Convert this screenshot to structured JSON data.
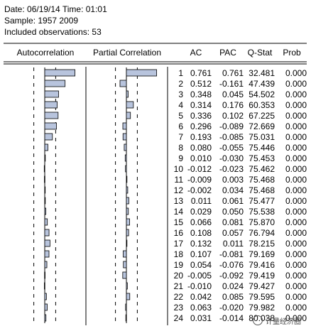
{
  "header": {
    "date_line": "Date: 06/19/14   Time: 01:01",
    "sample_line": "Sample: 1957 2009",
    "obs_line": "Included observations: 53"
  },
  "columns": {
    "autocorrelation": "Autocorrelation",
    "partial_correlation": "Partial Correlation",
    "ac": "AC",
    "pac": "PAC",
    "qstat": "Q-Stat",
    "prob": "Prob"
  },
  "bar_color": "#b8c4dd",
  "watermark": {
    "text": "计量经济圈"
  },
  "rows": [
    {
      "lag": "1",
      "ac": "0.761",
      "pac": "0.761",
      "q": "32.481",
      "prob": "0.000"
    },
    {
      "lag": "2",
      "ac": "0.512",
      "pac": "-0.161",
      "q": "47.439",
      "prob": "0.000"
    },
    {
      "lag": "3",
      "ac": "0.348",
      "pac": "0.045",
      "q": "54.502",
      "prob": "0.000"
    },
    {
      "lag": "4",
      "ac": "0.314",
      "pac": "0.176",
      "q": "60.353",
      "prob": "0.000"
    },
    {
      "lag": "5",
      "ac": "0.336",
      "pac": "0.102",
      "q": "67.225",
      "prob": "0.000"
    },
    {
      "lag": "6",
      "ac": "0.296",
      "pac": "-0.089",
      "q": "72.669",
      "prob": "0.000"
    },
    {
      "lag": "7",
      "ac": "0.193",
      "pac": "-0.085",
      "q": "75.031",
      "prob": "0.000"
    },
    {
      "lag": "8",
      "ac": "0.080",
      "pac": "-0.055",
      "q": "75.446",
      "prob": "0.000"
    },
    {
      "lag": "9",
      "ac": "0.010",
      "pac": "-0.030",
      "q": "75.453",
      "prob": "0.000"
    },
    {
      "lag": "10",
      "ac": "-0.012",
      "pac": "-0.023",
      "q": "75.462",
      "prob": "0.000"
    },
    {
      "lag": "11",
      "ac": "-0.009",
      "pac": "0.003",
      "q": "75.468",
      "prob": "0.000"
    },
    {
      "lag": "12",
      "ac": "-0.002",
      "pac": "0.034",
      "q": "75.468",
      "prob": "0.000"
    },
    {
      "lag": "13",
      "ac": "0.011",
      "pac": "0.061",
      "q": "75.477",
      "prob": "0.000"
    },
    {
      "lag": "14",
      "ac": "0.029",
      "pac": "0.050",
      "q": "75.538",
      "prob": "0.000"
    },
    {
      "lag": "15",
      "ac": "0.066",
      "pac": "0.081",
      "q": "75.870",
      "prob": "0.000"
    },
    {
      "lag": "16",
      "ac": "0.108",
      "pac": "0.057",
      "q": "76.794",
      "prob": "0.000"
    },
    {
      "lag": "17",
      "ac": "0.132",
      "pac": "0.011",
      "q": "78.215",
      "prob": "0.000"
    },
    {
      "lag": "18",
      "ac": "0.107",
      "pac": "-0.081",
      "q": "79.169",
      "prob": "0.000"
    },
    {
      "lag": "19",
      "ac": "0.054",
      "pac": "-0.076",
      "q": "79.416",
      "prob": "0.000"
    },
    {
      "lag": "20",
      "ac": "-0.005",
      "pac": "-0.092",
      "q": "79.419",
      "prob": "0.000"
    },
    {
      "lag": "21",
      "ac": "-0.010",
      "pac": "0.024",
      "q": "79.427",
      "prob": "0.000"
    },
    {
      "lag": "22",
      "ac": "0.042",
      "pac": "0.085",
      "q": "79.595",
      "prob": "0.000"
    },
    {
      "lag": "23",
      "ac": "0.063",
      "pac": "-0.020",
      "q": "79.982",
      "prob": "0.000"
    },
    {
      "lag": "24",
      "ac": "0.031",
      "pac": "-0.014",
      "q": "80.038",
      "prob": "0.000"
    }
  ],
  "chart_data": {
    "type": "bar",
    "orientation": "horizontal",
    "categories": [
      "1",
      "2",
      "3",
      "4",
      "5",
      "6",
      "7",
      "8",
      "9",
      "10",
      "11",
      "12",
      "13",
      "14",
      "15",
      "16",
      "17",
      "18",
      "19",
      "20",
      "21",
      "22",
      "23",
      "24"
    ],
    "series": [
      {
        "name": "Autocorrelation",
        "values": [
          0.761,
          0.512,
          0.348,
          0.314,
          0.336,
          0.296,
          0.193,
          0.08,
          0.01,
          -0.012,
          -0.009,
          -0.002,
          0.011,
          0.029,
          0.066,
          0.108,
          0.132,
          0.107,
          0.054,
          -0.005,
          -0.01,
          0.042,
          0.063,
          0.031
        ]
      },
      {
        "name": "Partial Correlation",
        "values": [
          0.761,
          -0.161,
          0.045,
          0.176,
          0.102,
          -0.089,
          -0.085,
          -0.055,
          -0.03,
          -0.023,
          0.003,
          0.034,
          0.061,
          0.05,
          0.081,
          0.057,
          0.011,
          -0.081,
          -0.076,
          -0.092,
          0.024,
          0.085,
          -0.02,
          -0.014
        ]
      }
    ],
    "confidence_band": 0.275,
    "xlim": [
      -1,
      1
    ]
  }
}
